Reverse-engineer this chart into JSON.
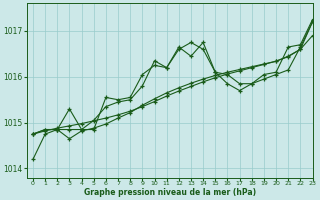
{
  "xlabel": "Graphe pression niveau de la mer (hPa)",
  "xlim": [
    -0.5,
    23
  ],
  "ylim": [
    1013.8,
    1017.6
  ],
  "yticks": [
    1014,
    1015,
    1016,
    1017
  ],
  "xticks": [
    0,
    1,
    2,
    3,
    4,
    5,
    6,
    7,
    8,
    9,
    10,
    11,
    12,
    13,
    14,
    15,
    16,
    17,
    18,
    19,
    20,
    21,
    22,
    23
  ],
  "bg_color": "#cce8e8",
  "grid_color": "#99cccc",
  "line_color": "#1a5c1a",
  "line1_noisy": [
    1014.75,
    1014.85,
    1014.85,
    1014.85,
    1014.85,
    1014.85,
    1015.55,
    1015.5,
    1015.55,
    1016.05,
    1016.25,
    1016.2,
    1016.65,
    1016.45,
    1016.75,
    1016.1,
    1016.05,
    1015.85,
    1015.85,
    1016.05,
    1016.1,
    1016.65,
    1016.7,
    1017.25
  ],
  "line2_noisy": [
    1014.75,
    1014.85,
    1014.85,
    1015.3,
    1014.85,
    1015.05,
    1015.35,
    1015.45,
    1015.5,
    1015.8,
    1016.35,
    1016.2,
    1016.6,
    1016.75,
    1016.6,
    1016.1,
    1015.85,
    1015.7,
    1015.85,
    1015.95,
    1016.05,
    1016.15,
    1016.65,
    1017.2
  ],
  "line3_smooth": [
    1014.2,
    1014.75,
    1014.85,
    1014.65,
    1014.82,
    1014.88,
    1014.97,
    1015.1,
    1015.22,
    1015.38,
    1015.52,
    1015.65,
    1015.76,
    1015.86,
    1015.95,
    1016.03,
    1016.1,
    1016.16,
    1016.22,
    1016.28,
    1016.34,
    1016.45,
    1016.6,
    1016.9
  ],
  "line4_smooth": [
    1014.75,
    1014.82,
    1014.88,
    1014.93,
    1014.98,
    1015.04,
    1015.1,
    1015.17,
    1015.25,
    1015.35,
    1015.46,
    1015.58,
    1015.69,
    1015.79,
    1015.89,
    1015.98,
    1016.06,
    1016.13,
    1016.2,
    1016.27,
    1016.34,
    1016.44,
    1016.6,
    1017.2
  ]
}
